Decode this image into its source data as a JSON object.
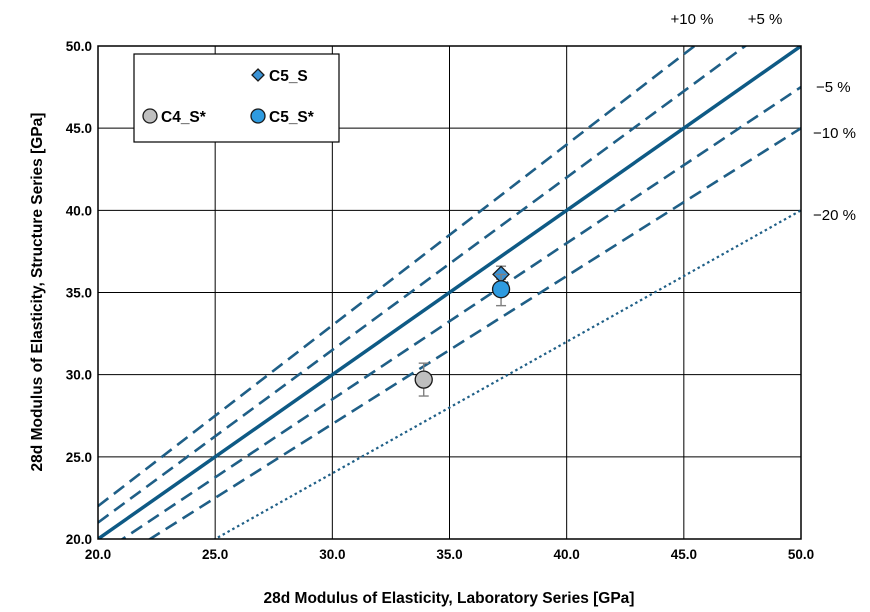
{
  "chart_data": {
    "type": "scatter",
    "title": "",
    "xlabel": "28d Modulus of Elasticity, Laboratory Series [GPa]",
    "ylabel": "28d Modulus of Elasticity, Structure Series [GPa]",
    "xlim": [
      20,
      50
    ],
    "ylim": [
      20,
      50
    ],
    "x_ticks": [
      "20.0",
      "25.0",
      "30.0",
      "35.0",
      "40.0",
      "45.0",
      "50.0"
    ],
    "y_ticks": [
      "20.0",
      "25.0",
      "30.0",
      "35.0",
      "40.0",
      "45.0",
      "50.0"
    ],
    "grid": true,
    "legend_position": "top-left",
    "reference_lines": [
      {
        "label": "+10 %",
        "factor": 1.1,
        "style": "dashed",
        "color": "#1f5f87"
      },
      {
        "label": "+5 %",
        "factor": 1.05,
        "style": "dashed",
        "color": "#1f5f87"
      },
      {
        "label": "",
        "factor": 1.0,
        "style": "solid",
        "color": "#0e5a85"
      },
      {
        "label": "−5 %",
        "factor": 0.95,
        "style": "dashed",
        "color": "#1f5f87"
      },
      {
        "label": "−10 %",
        "factor": 0.9,
        "style": "dashed",
        "color": "#1f5f87"
      },
      {
        "label": "−20 %",
        "factor": 0.8,
        "style": "dotted",
        "color": "#1f5f87"
      }
    ],
    "series": [
      {
        "name": "C5_S",
        "marker": "diamond",
        "color": "#3a93d6",
        "points": [
          {
            "x": 37.2,
            "y": 36.1,
            "err_low": 0.3,
            "err_high": 0.5
          }
        ]
      },
      {
        "name": "C4_S*",
        "marker": "circle",
        "color": "#bfbfbf",
        "points": [
          {
            "x": 33.9,
            "y": 29.7,
            "err_low": 1.0,
            "err_high": 1.0
          }
        ]
      },
      {
        "name": "C5_S*",
        "marker": "circle",
        "color": "#2e9be0",
        "points": [
          {
            "x": 37.2,
            "y": 35.2,
            "err_low": 1.0,
            "err_high": 0.9
          }
        ]
      }
    ]
  }
}
